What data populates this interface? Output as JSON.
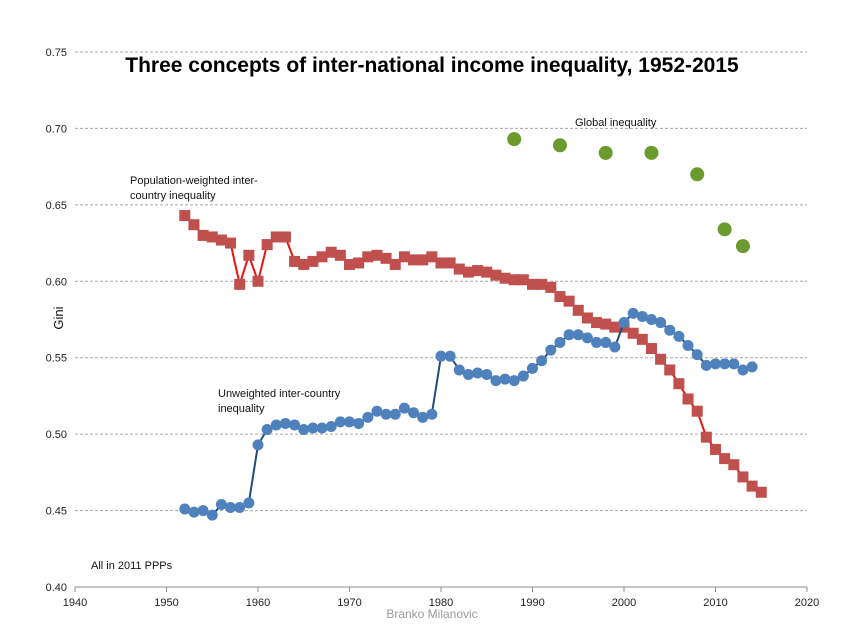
{
  "chart_data": {
    "type": "scatter",
    "title": "Three concepts of inter-national income inequality, 1952-2015",
    "ylabel": "Gini",
    "xlabel": "",
    "xlim": [
      1940,
      2020
    ],
    "ylim": [
      0.4,
      0.75
    ],
    "x_ticks": [
      "1940",
      "1950",
      "1960",
      "1970",
      "1980",
      "1990",
      "2000",
      "2010",
      "2020"
    ],
    "y_ticks": [
      "0.40",
      "0.45",
      "0.50",
      "0.55",
      "0.60",
      "0.65",
      "0.70",
      "0.75"
    ],
    "grid": "horizontal dashed",
    "annotations": {
      "population_weighted": [
        "Population-weighted inter-",
        "country inequality"
      ],
      "unweighted": [
        "Unweighted inter-country",
        "inequality"
      ],
      "global": [
        "Global inequality"
      ],
      "ppp_note": [
        "All in 2011 PPPs"
      ]
    },
    "credit": "Branko Milanovic",
    "colors": {
      "population_weighted_marker": "#c0504d",
      "population_weighted_line": "#e8140f",
      "unweighted_marker": "#4f81bd",
      "unweighted_line": "#1f4e79",
      "global_marker": "#6b9a2e",
      "grid": "#a6a6a6",
      "credit": "#9a9a9a"
    },
    "series": [
      {
        "name": "Population-weighted inter-country inequality",
        "marker": "square",
        "connected": true,
        "x": [
          1952,
          1953,
          1954,
          1955,
          1956,
          1957,
          1958,
          1959,
          1960,
          1961,
          1962,
          1963,
          1964,
          1965,
          1966,
          1967,
          1968,
          1969,
          1970,
          1971,
          1972,
          1973,
          1974,
          1975,
          1976,
          1977,
          1978,
          1979,
          1980,
          1981,
          1982,
          1983,
          1984,
          1985,
          1986,
          1987,
          1988,
          1989,
          1990,
          1991,
          1992,
          1993,
          1994,
          1995,
          1996,
          1997,
          1998,
          1999,
          2000,
          2001,
          2002,
          2003,
          2004,
          2005,
          2006,
          2007,
          2008,
          2009,
          2010,
          2011,
          2012,
          2013,
          2014,
          2015
        ],
        "y": [
          0.643,
          0.637,
          0.63,
          0.629,
          0.627,
          0.625,
          0.598,
          0.617,
          0.6,
          0.624,
          0.629,
          0.629,
          0.613,
          0.611,
          0.613,
          0.616,
          0.619,
          0.617,
          0.611,
          0.612,
          0.616,
          0.617,
          0.615,
          0.611,
          0.616,
          0.614,
          0.614,
          0.616,
          0.612,
          0.612,
          0.608,
          0.606,
          0.607,
          0.606,
          0.604,
          0.602,
          0.601,
          0.601,
          0.598,
          0.598,
          0.596,
          0.59,
          0.587,
          0.581,
          0.576,
          0.573,
          0.572,
          0.57,
          0.57,
          0.566,
          0.562,
          0.556,
          0.549,
          0.542,
          0.533,
          0.523,
          0.515,
          0.498,
          0.49,
          0.484,
          0.48,
          0.472,
          0.466,
          0.462
        ]
      },
      {
        "name": "Unweighted inter-country inequality",
        "marker": "circle",
        "connected": true,
        "x": [
          1952,
          1953,
          1954,
          1955,
          1956,
          1957,
          1958,
          1959,
          1960,
          1961,
          1962,
          1963,
          1964,
          1965,
          1966,
          1967,
          1968,
          1969,
          1970,
          1971,
          1972,
          1973,
          1974,
          1975,
          1976,
          1977,
          1978,
          1979,
          1980,
          1981,
          1982,
          1983,
          1984,
          1985,
          1986,
          1987,
          1988,
          1989,
          1990,
          1991,
          1992,
          1993,
          1994,
          1995,
          1996,
          1997,
          1998,
          1999,
          2000,
          2001,
          2002,
          2003,
          2004,
          2005,
          2006,
          2007,
          2008,
          2009,
          2010,
          2011,
          2012,
          2013,
          2014
        ],
        "y": [
          0.451,
          0.449,
          0.45,
          0.447,
          0.454,
          0.452,
          0.452,
          0.455,
          0.493,
          0.503,
          0.506,
          0.507,
          0.506,
          0.503,
          0.504,
          0.504,
          0.505,
          0.508,
          0.508,
          0.507,
          0.511,
          0.515,
          0.513,
          0.513,
          0.517,
          0.514,
          0.511,
          0.513,
          0.551,
          0.551,
          0.542,
          0.539,
          0.54,
          0.539,
          0.535,
          0.536,
          0.535,
          0.538,
          0.543,
          0.548,
          0.555,
          0.56,
          0.565,
          0.565,
          0.563,
          0.56,
          0.56,
          0.557,
          0.573,
          0.579,
          0.577,
          0.575,
          0.573,
          0.568,
          0.564,
          0.558,
          0.552,
          0.545,
          0.546,
          0.546,
          0.546,
          0.542,
          0.544
        ]
      },
      {
        "name": "Global inequality",
        "marker": "circle",
        "connected": false,
        "x": [
          1988,
          1993,
          1998,
          2003,
          2008,
          2011,
          2013
        ],
        "y": [
          0.693,
          0.689,
          0.684,
          0.684,
          0.67,
          0.634,
          0.623
        ]
      }
    ]
  }
}
